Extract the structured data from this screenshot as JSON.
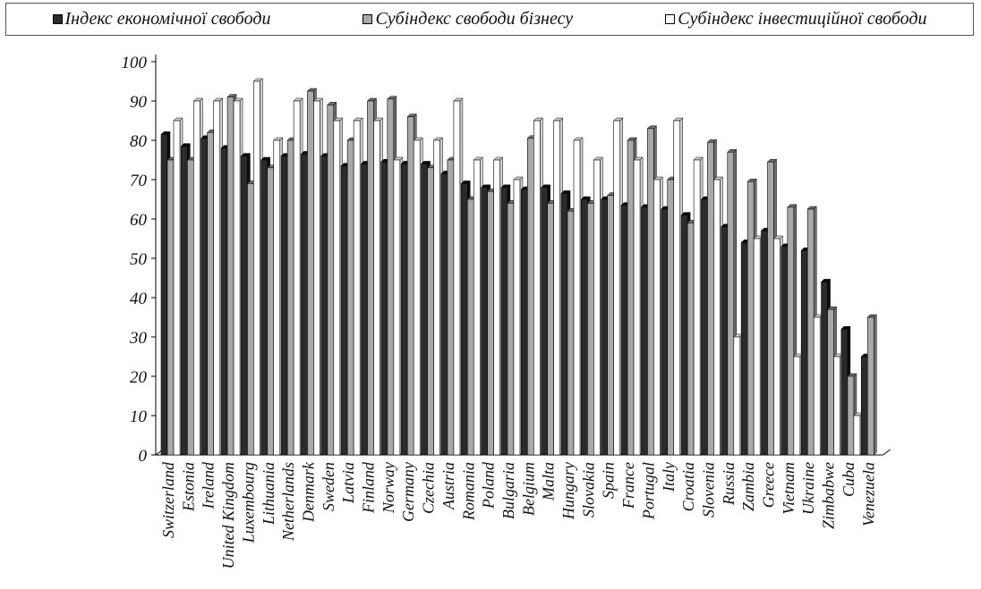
{
  "legend": {
    "items": [
      {
        "label": "Індекс економічної свободи"
      },
      {
        "label": "Субіндекс свободи бізнесу"
      },
      {
        "label": "Субіндекс інвестиційної свободи"
      }
    ]
  },
  "colors": {
    "series1_front": "#2b2b2b",
    "series1_side": "#0d0d0d",
    "series2_front": "#a9a9a9",
    "series2_side": "#6f6f6f",
    "series3_front": "#ffffff",
    "series3_side": "#cfcfcf",
    "outline": "#000000"
  },
  "chart_data": {
    "type": "bar",
    "title": "",
    "xlabel": "",
    "ylabel": "",
    "ylim": [
      0,
      100
    ],
    "yticks": [
      0,
      10,
      20,
      30,
      40,
      50,
      60,
      70,
      80,
      90,
      100
    ],
    "grid": false,
    "legend_position": "top",
    "categories": [
      "Switzerland",
      "Estonia",
      "Ireland",
      "United Kingdom",
      "Luxembourg",
      "Lithuania",
      "Netherlands",
      "Denmark",
      "Sweden",
      "Latvia",
      "Finland",
      "Norway",
      "Germany",
      "Czechia",
      "Austria",
      "Romania",
      "Poland",
      "Bulgaria",
      "Belgium",
      "Malta",
      "Hungary",
      "Slovakia",
      "Spain",
      "France",
      "Portugal",
      "Italy",
      "Croatia",
      "Slovenia",
      "Russia",
      "Zambia",
      "Greece",
      "Vietnam",
      "Ukraine",
      "Zimbabwe",
      "Cuba",
      "Venezuela"
    ],
    "series": [
      {
        "name": "Індекс економічної свободи",
        "values": [
          81.5,
          78.5,
          80.5,
          78,
          76,
          75,
          76,
          76.5,
          76,
          73.5,
          74,
          74.5,
          74,
          74,
          71.5,
          69,
          68,
          68,
          67.5,
          68,
          66.5,
          65,
          65,
          63.5,
          63,
          62.5,
          61,
          65,
          58,
          54,
          57,
          53,
          52,
          44,
          32,
          25
        ]
      },
      {
        "name": "Субіндекс свободи бізнесу",
        "values": [
          75,
          75,
          82,
          91,
          69,
          73,
          80,
          92.5,
          89,
          80,
          90,
          90.5,
          86,
          73,
          75,
          65,
          67,
          64,
          80.5,
          64,
          62,
          64,
          66,
          80,
          83,
          70,
          59,
          79.5,
          77,
          69.5,
          74.5,
          63,
          62.5,
          37,
          20,
          35
        ]
      },
      {
        "name": "Субіндекс інвестиційної свободи",
        "values": [
          85,
          90,
          90,
          90,
          95,
          80,
          90,
          90,
          85,
          85,
          85,
          75,
          80,
          80,
          90,
          75,
          75,
          70,
          85,
          85,
          80,
          75,
          85,
          75,
          70,
          85,
          75,
          70,
          30,
          55,
          55,
          25,
          35,
          25,
          10,
          null
        ]
      }
    ]
  }
}
